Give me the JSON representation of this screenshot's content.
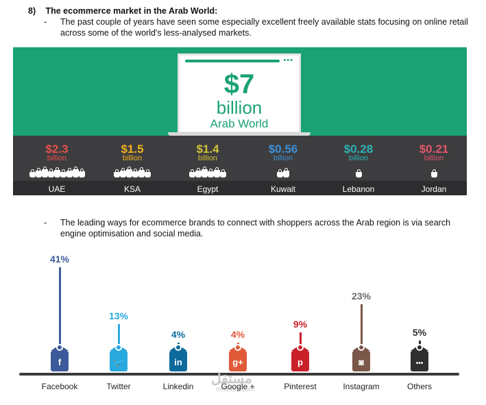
{
  "heading": {
    "number": "8)",
    "title": "The ecommerce market in the Arab World:"
  },
  "bullets": [
    {
      "dash": "-",
      "text": "The past couple of years have seen some especially excellent freely available stats focusing on online retail across some of the world's less-analysed markets."
    },
    {
      "dash": "-",
      "text": "The leading ways for ecommerce brands to connect with shoppers across the Arab region is via search engine optimisation and social media."
    }
  ],
  "infographic": {
    "total": {
      "value": "$7",
      "unit": "billion",
      "label": "Arab World"
    },
    "screen_dots": "•••",
    "countries": [
      {
        "value": "$2.3",
        "unit": "billion",
        "name": "UAE",
        "color": "#e8504a",
        "bags": 2.3
      },
      {
        "value": "$1.5",
        "unit": "billion",
        "name": "KSA",
        "color": "#f2b21f",
        "bags": 1.5
      },
      {
        "value": "$1.4",
        "unit": "billion",
        "name": "Egypt",
        "color": "#d2c43a",
        "bags": 1.4
      },
      {
        "value": "$0.56",
        "unit": "billion",
        "name": "Kuwait",
        "color": "#3e8fd6",
        "bags": 0.56
      },
      {
        "value": "$0.28",
        "unit": "billion",
        "name": "Lebanon",
        "color": "#2eb1b4",
        "bags": 0.28
      },
      {
        "value": "$0.21",
        "unit": "billion",
        "name": "Jordan",
        "color": "#e0566a",
        "bags": 0.21
      }
    ]
  },
  "social": [
    {
      "name": "Facebook",
      "pct": "41%",
      "value": 41,
      "color": "#3c5a99",
      "pct_color": "#3c5a99",
      "icon": "f",
      "icon_name": "facebook-icon"
    },
    {
      "name": "Twitter",
      "pct": "13%",
      "value": 13,
      "color": "#28a9e0",
      "pct_color": "#28a9e0",
      "icon": "🐦",
      "icon_name": "twitter-icon"
    },
    {
      "name": "Linkedin",
      "pct": "4%",
      "value": 4,
      "color": "#0e6a9b",
      "pct_color": "#0e6a9b",
      "icon": "in",
      "icon_name": "linkedin-icon"
    },
    {
      "name": "Google +",
      "pct": "4%",
      "value": 4,
      "color": "#e05a3a",
      "pct_color": "#e05a3a",
      "icon": "g+",
      "icon_name": "google-plus-icon"
    },
    {
      "name": "Pinterest",
      "pct": "9%",
      "value": 9,
      "color": "#c9202a",
      "pct_color": "#c9202a",
      "icon": "p",
      "icon_name": "pinterest-icon"
    },
    {
      "name": "Instagram",
      "pct": "23%",
      "value": 23,
      "color": "#7a5748",
      "pct_color": "#6b6b6b",
      "icon": "◙",
      "icon_name": "instagram-icon"
    },
    {
      "name": "Others",
      "pct": "5%",
      "value": 5,
      "color": "#2f2f2f",
      "pct_color": "#2f2f2f",
      "icon": "•••",
      "icon_name": "more-icon"
    }
  ],
  "watermark": {
    "arabic": "مستقل",
    "latin": "mostaql.com"
  }
}
